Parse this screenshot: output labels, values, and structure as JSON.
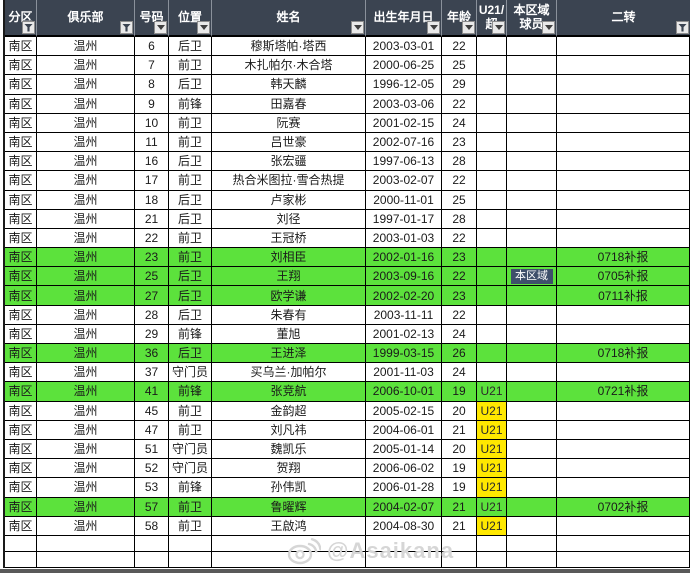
{
  "colors": {
    "header_bg": "#3b4451",
    "header_text": "#ffffff",
    "grid": "#000000",
    "green": "#5ce23c",
    "yellow": "#ffe800",
    "badge_bg": "#3e4f6b",
    "watermark": "#d6d6d6",
    "bottom_bar": "#595959",
    "text": "#1a1a1a"
  },
  "header": {
    "columns": [
      {
        "label": "分区",
        "lines": [
          "分区"
        ],
        "filter": "funnel"
      },
      {
        "label": "俱乐部",
        "lines": [
          "俱乐部"
        ],
        "filter": "funnel"
      },
      {
        "label": "号码",
        "lines": [
          "号码"
        ],
        "filter": "dropdown"
      },
      {
        "label": "位置",
        "lines": [
          "位置"
        ],
        "filter": "dropdown"
      },
      {
        "label": "姓名",
        "lines": [
          "姓名"
        ],
        "filter": "dropdown"
      },
      {
        "label": "出生年月日",
        "lines": [
          "出生年月日"
        ],
        "filter": "dropdown"
      },
      {
        "label": "年龄",
        "lines": [
          "年龄"
        ],
        "filter": "dropdown"
      },
      {
        "label": "U21/超",
        "lines": [
          "U21/",
          "超"
        ],
        "filter": "dropdown"
      },
      {
        "label": "本区域球员",
        "lines": [
          "本区域",
          "球员"
        ],
        "filter": "dropdown"
      },
      {
        "label": "二转",
        "lines": [
          "二转"
        ],
        "filter": "funnel"
      }
    ]
  },
  "rows": [
    {
      "region": "南区",
      "club": "温州",
      "number": "6",
      "position": "后卫",
      "name": "穆斯塔帕·塔西",
      "birth": "2003-03-01",
      "age": "22",
      "u21": "",
      "local": "",
      "note": "",
      "highlight": false
    },
    {
      "region": "南区",
      "club": "温州",
      "number": "7",
      "position": "前卫",
      "name": "木扎帕尔·木合塔",
      "birth": "2000-06-25",
      "age": "25",
      "u21": "",
      "local": "",
      "note": "",
      "highlight": false
    },
    {
      "region": "南区",
      "club": "温州",
      "number": "8",
      "position": "后卫",
      "name": "韩天麟",
      "birth": "1996-12-05",
      "age": "29",
      "u21": "",
      "local": "",
      "note": "",
      "highlight": false
    },
    {
      "region": "南区",
      "club": "温州",
      "number": "9",
      "position": "前锋",
      "name": "田嘉春",
      "birth": "2003-03-06",
      "age": "22",
      "u21": "",
      "local": "",
      "note": "",
      "highlight": false
    },
    {
      "region": "南区",
      "club": "温州",
      "number": "10",
      "position": "前卫",
      "name": "阮赛",
      "birth": "2001-02-15",
      "age": "24",
      "u21": "",
      "local": "",
      "note": "",
      "highlight": false
    },
    {
      "region": "南区",
      "club": "温州",
      "number": "11",
      "position": "前卫",
      "name": "吕世豪",
      "birth": "2002-07-16",
      "age": "23",
      "u21": "",
      "local": "",
      "note": "",
      "highlight": false
    },
    {
      "region": "南区",
      "club": "温州",
      "number": "16",
      "position": "后卫",
      "name": "张宏疆",
      "birth": "1997-06-13",
      "age": "28",
      "u21": "",
      "local": "",
      "note": "",
      "highlight": false
    },
    {
      "region": "南区",
      "club": "温州",
      "number": "17",
      "position": "前卫",
      "name": "热合米图拉·雪合热提",
      "birth": "2003-02-07",
      "age": "22",
      "u21": "",
      "local": "",
      "note": "",
      "highlight": false
    },
    {
      "region": "南区",
      "club": "温州",
      "number": "18",
      "position": "后卫",
      "name": "卢家彬",
      "birth": "2000-11-01",
      "age": "25",
      "u21": "",
      "local": "",
      "note": "",
      "highlight": false
    },
    {
      "region": "南区",
      "club": "温州",
      "number": "21",
      "position": "后卫",
      "name": "刘径",
      "birth": "1997-01-17",
      "age": "28",
      "u21": "",
      "local": "",
      "note": "",
      "highlight": false
    },
    {
      "region": "南区",
      "club": "温州",
      "number": "22",
      "position": "前卫",
      "name": "王冠桥",
      "birth": "2003-01-03",
      "age": "22",
      "u21": "",
      "local": "",
      "note": "",
      "highlight": false
    },
    {
      "region": "南区",
      "club": "温州",
      "number": "23",
      "position": "前卫",
      "name": "刘相臣",
      "birth": "2002-01-16",
      "age": "23",
      "u21": "",
      "local": "",
      "note": "0718补报",
      "highlight": true
    },
    {
      "region": "南区",
      "club": "温州",
      "number": "25",
      "position": "后卫",
      "name": "王翔",
      "birth": "2003-09-16",
      "age": "22",
      "u21": "",
      "local": "本区域",
      "note": "0705补报",
      "highlight": true
    },
    {
      "region": "南区",
      "club": "温州",
      "number": "27",
      "position": "后卫",
      "name": "欧学谦",
      "birth": "2002-02-20",
      "age": "23",
      "u21": "",
      "local": "",
      "note": "0711补报",
      "highlight": true
    },
    {
      "region": "南区",
      "club": "温州",
      "number": "28",
      "position": "后卫",
      "name": "朱春有",
      "birth": "2003-11-11",
      "age": "22",
      "u21": "",
      "local": "",
      "note": "",
      "highlight": false
    },
    {
      "region": "南区",
      "club": "温州",
      "number": "29",
      "position": "前锋",
      "name": "董旭",
      "birth": "2001-02-13",
      "age": "24",
      "u21": "",
      "local": "",
      "note": "",
      "highlight": false
    },
    {
      "region": "南区",
      "club": "温州",
      "number": "36",
      "position": "后卫",
      "name": "王进泽",
      "birth": "1999-03-15",
      "age": "26",
      "u21": "",
      "local": "",
      "note": "0718补报",
      "highlight": true
    },
    {
      "region": "南区",
      "club": "温州",
      "number": "37",
      "position": "守门员",
      "name": "买乌兰·加帕尔",
      "birth": "2001-11-03",
      "age": "24",
      "u21": "",
      "local": "",
      "note": "",
      "highlight": false
    },
    {
      "region": "南区",
      "club": "温州",
      "number": "41",
      "position": "前锋",
      "name": "张竞航",
      "birth": "2006-10-01",
      "age": "19",
      "u21": "U21",
      "local": "",
      "note": "0721补报",
      "highlight": true
    },
    {
      "region": "南区",
      "club": "温州",
      "number": "45",
      "position": "前卫",
      "name": "金韵超",
      "birth": "2005-02-15",
      "age": "20",
      "u21": "U21",
      "local": "",
      "note": "",
      "highlight": false
    },
    {
      "region": "南区",
      "club": "温州",
      "number": "47",
      "position": "前卫",
      "name": "刘凡祎",
      "birth": "2004-06-01",
      "age": "21",
      "u21": "U21",
      "local": "",
      "note": "",
      "highlight": false
    },
    {
      "region": "南区",
      "club": "温州",
      "number": "51",
      "position": "守门员",
      "name": "魏凯乐",
      "birth": "2005-01-14",
      "age": "20",
      "u21": "U21",
      "local": "",
      "note": "",
      "highlight": false
    },
    {
      "region": "南区",
      "club": "温州",
      "number": "52",
      "position": "守门员",
      "name": "贺翔",
      "birth": "2006-06-02",
      "age": "19",
      "u21": "U21",
      "local": "",
      "note": "",
      "highlight": false
    },
    {
      "region": "南区",
      "club": "温州",
      "number": "53",
      "position": "前锋",
      "name": "孙伟凯",
      "birth": "2006-01-28",
      "age": "19",
      "u21": "U21",
      "local": "",
      "note": "",
      "highlight": false
    },
    {
      "region": "南区",
      "club": "温州",
      "number": "57",
      "position": "前卫",
      "name": "鲁曜辉",
      "birth": "2004-02-07",
      "age": "21",
      "u21": "U21",
      "local": "",
      "note": "0702补报",
      "highlight": true
    },
    {
      "region": "南区",
      "club": "温州",
      "number": "58",
      "position": "前卫",
      "name": "王啟鸿",
      "birth": "2004-08-30",
      "age": "21",
      "u21": "U21",
      "local": "",
      "note": "",
      "highlight": false
    }
  ],
  "empty_row_count": 2,
  "watermark": {
    "text": "@Asaikana",
    "icon": "weibo-icon"
  }
}
